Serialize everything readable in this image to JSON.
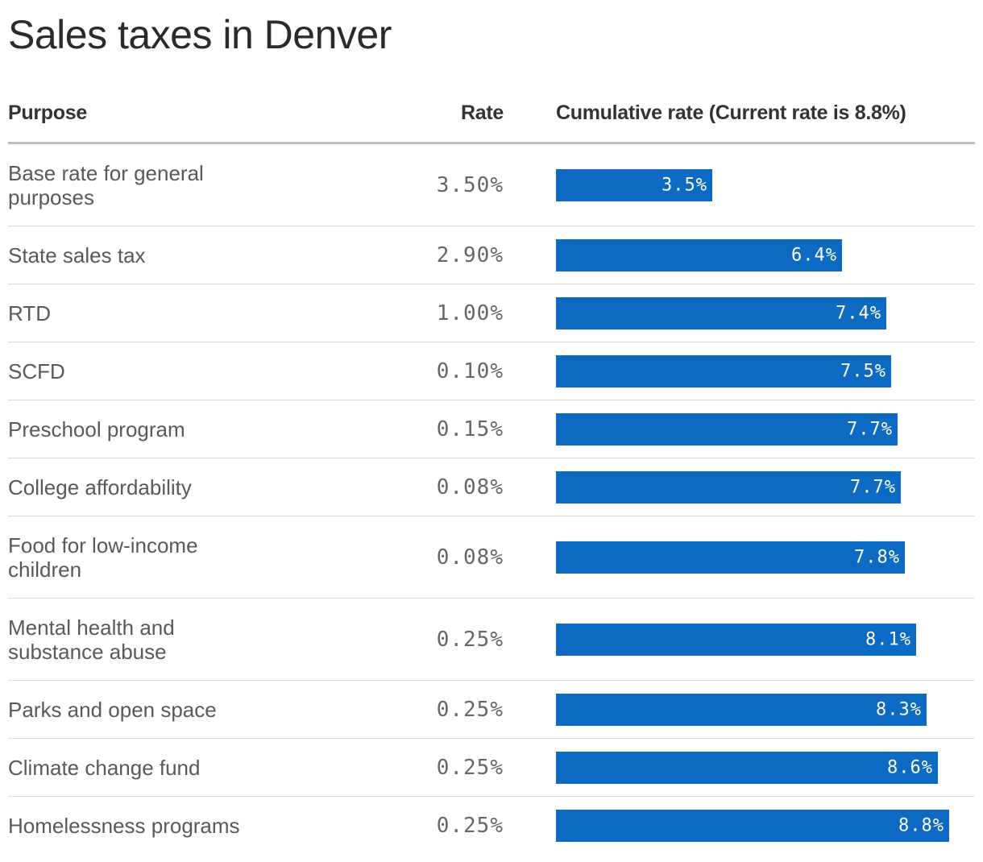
{
  "title": "Sales taxes in Denver",
  "columns": {
    "purpose": "Purpose",
    "rate": "Rate",
    "cumulative": "Cumulative rate (Current rate is 8.8%)"
  },
  "chart_data": {
    "type": "bar",
    "title": "Sales taxes in Denver",
    "xlim": [
      0,
      9.0
    ],
    "rows": [
      {
        "purpose": "Base rate for general purposes",
        "rate": "3.50%",
        "cumulative": 3.5,
        "label": "3.5%"
      },
      {
        "purpose": "State sales tax",
        "rate": "2.90%",
        "cumulative": 6.4,
        "label": "6.4%"
      },
      {
        "purpose": "RTD",
        "rate": "1.00%",
        "cumulative": 7.4,
        "label": "7.4%"
      },
      {
        "purpose": "SCFD",
        "rate": "0.10%",
        "cumulative": 7.5,
        "label": "7.5%"
      },
      {
        "purpose": "Preschool program",
        "rate": "0.15%",
        "cumulative": 7.65,
        "label": "7.7%"
      },
      {
        "purpose": "College affordability",
        "rate": "0.08%",
        "cumulative": 7.73,
        "label": "7.7%"
      },
      {
        "purpose": "Food for low-income children",
        "rate": "0.08%",
        "cumulative": 7.81,
        "label": "7.8%"
      },
      {
        "purpose": "Mental health and substance abuse",
        "rate": "0.25%",
        "cumulative": 8.06,
        "label": "8.1%"
      },
      {
        "purpose": "Parks and open space",
        "rate": "0.25%",
        "cumulative": 8.31,
        "label": "8.3%"
      },
      {
        "purpose": "Climate change fund",
        "rate": "0.25%",
        "cumulative": 8.56,
        "label": "8.6%"
      },
      {
        "purpose": "Homelessness programs",
        "rate": "0.25%",
        "cumulative": 8.81,
        "label": "8.8%"
      }
    ]
  },
  "colors": {
    "bar": "#0d6ac2"
  }
}
